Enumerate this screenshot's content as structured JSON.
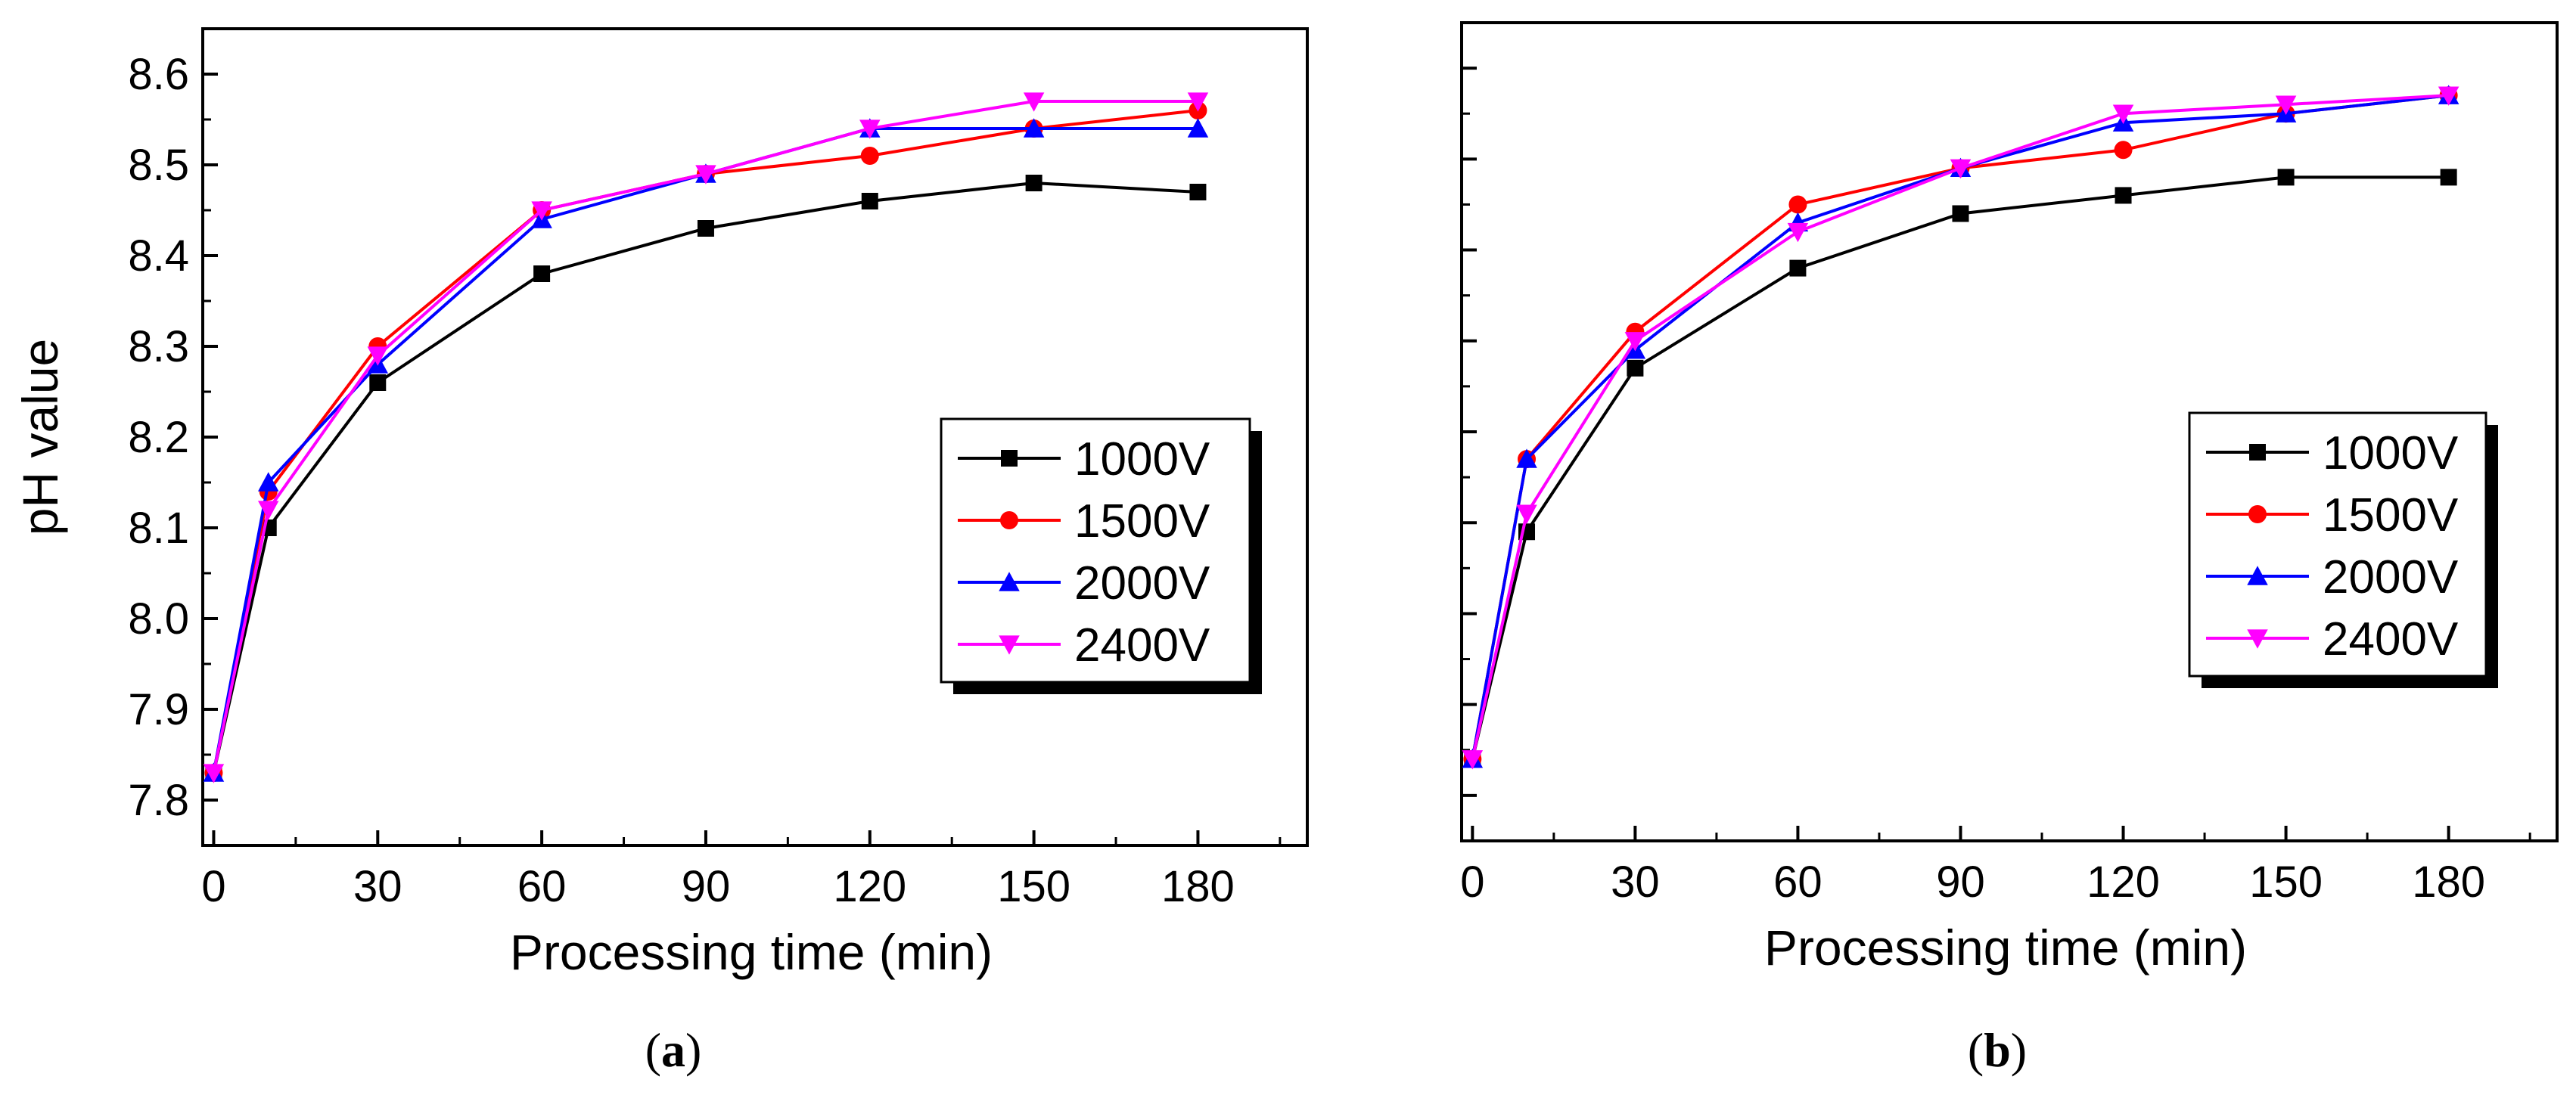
{
  "chart_data": [
    {
      "type": "line",
      "panel_label": "a",
      "xlabel": "Processing time (min)",
      "ylabel": "pH value",
      "xlim": [
        -2,
        200
      ],
      "ylim": [
        7.75,
        8.65
      ],
      "xticks": [
        0,
        30,
        60,
        90,
        120,
        150,
        180
      ],
      "yticks": [
        7.8,
        7.9,
        8.0,
        8.1,
        8.2,
        8.3,
        8.4,
        8.5,
        8.6
      ],
      "ytick_labels": [
        "7.8",
        "7.9",
        "8.0",
        "8.1",
        "8.2",
        "8.3",
        "8.4",
        "8.5",
        "8.6"
      ],
      "y_tick_labels_shown": true,
      "legend_position": "center-right",
      "x": [
        0,
        10,
        30,
        60,
        90,
        120,
        150,
        180
      ],
      "series": [
        {
          "name": "1000V",
          "color": "#000000",
          "marker": "square",
          "values": [
            7.83,
            8.1,
            8.26,
            8.38,
            8.43,
            8.46,
            8.48,
            8.47
          ]
        },
        {
          "name": "1500V",
          "color": "#ff0000",
          "marker": "circle",
          "values": [
            7.83,
            8.14,
            8.3,
            8.45,
            8.49,
            8.51,
            8.54,
            8.56
          ]
        },
        {
          "name": "2000V",
          "color": "#0000ff",
          "marker": "triangle-up",
          "values": [
            7.83,
            8.15,
            8.28,
            8.44,
            8.49,
            8.54,
            8.54,
            8.54
          ]
        },
        {
          "name": "2400V",
          "color": "#ff00ff",
          "marker": "triangle-down",
          "values": [
            7.83,
            8.12,
            8.29,
            8.45,
            8.49,
            8.54,
            8.57,
            8.57
          ]
        }
      ]
    },
    {
      "type": "line",
      "panel_label": "b",
      "xlabel": "Processing time (min)",
      "ylabel": "",
      "xlim": [
        -2,
        200
      ],
      "ylim": [
        7.75,
        8.65
      ],
      "xticks": [
        0,
        30,
        60,
        90,
        120,
        150,
        180
      ],
      "yticks": [
        7.8,
        7.9,
        8.0,
        8.1,
        8.2,
        8.3,
        8.4,
        8.5,
        8.6
      ],
      "ytick_labels": [],
      "y_tick_labels_shown": false,
      "legend_position": "center-right",
      "x": [
        0,
        10,
        30,
        60,
        90,
        120,
        150,
        180
      ],
      "series": [
        {
          "name": "1000V",
          "color": "#000000",
          "marker": "square",
          "values": [
            7.84,
            8.09,
            8.27,
            8.38,
            8.44,
            8.46,
            8.48,
            8.48
          ]
        },
        {
          "name": "1500V",
          "color": "#ff0000",
          "marker": "circle",
          "values": [
            7.84,
            8.17,
            8.31,
            8.45,
            8.49,
            8.51,
            8.55,
            8.57
          ]
        },
        {
          "name": "2000V",
          "color": "#0000ff",
          "marker": "triangle-up",
          "values": [
            7.84,
            8.17,
            8.29,
            8.43,
            8.49,
            8.54,
            8.55,
            8.57
          ]
        },
        {
          "name": "2400V",
          "color": "#ff00ff",
          "marker": "triangle-down",
          "values": [
            7.84,
            8.11,
            8.3,
            8.42,
            8.49,
            8.55,
            8.56,
            8.57
          ]
        }
      ]
    }
  ],
  "captions": [
    "a",
    "b"
  ]
}
